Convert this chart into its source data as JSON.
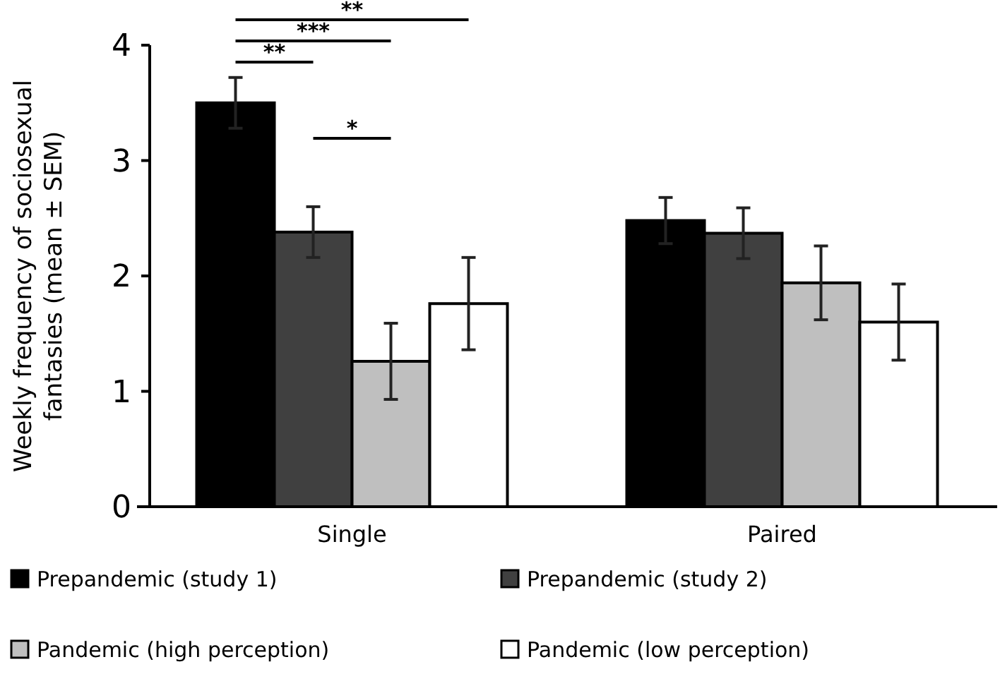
{
  "chart_data": {
    "type": "bar",
    "ylabel": "Weekly frequency of sociosexual fantasies (mean ± SEM)",
    "categories": [
      "Single",
      "Paired"
    ],
    "series": [
      {
        "name": "Prepandemic (study 1)",
        "color": "#000000",
        "values": [
          3.5,
          2.48
        ],
        "errors": [
          0.22,
          0.2
        ]
      },
      {
        "name": "Prepandemic (study 2)",
        "color": "#404040",
        "values": [
          2.38,
          2.37
        ],
        "errors": [
          0.22,
          0.22
        ]
      },
      {
        "name": "Pandemic (high perception)",
        "color": "#bfbfbf",
        "values": [
          1.26,
          1.94
        ],
        "errors": [
          0.33,
          0.32
        ]
      },
      {
        "name": "Pandemic (low perception)",
        "color": "#ffffff",
        "values": [
          1.76,
          1.6
        ],
        "errors": [
          0.4,
          0.33
        ]
      }
    ],
    "ylim": [
      0,
      4
    ],
    "yticks": [
      0,
      1,
      2,
      3,
      4
    ],
    "grid": false,
    "legend": "bottom",
    "annotations": [
      "**",
      "***",
      "**",
      "*"
    ]
  }
}
